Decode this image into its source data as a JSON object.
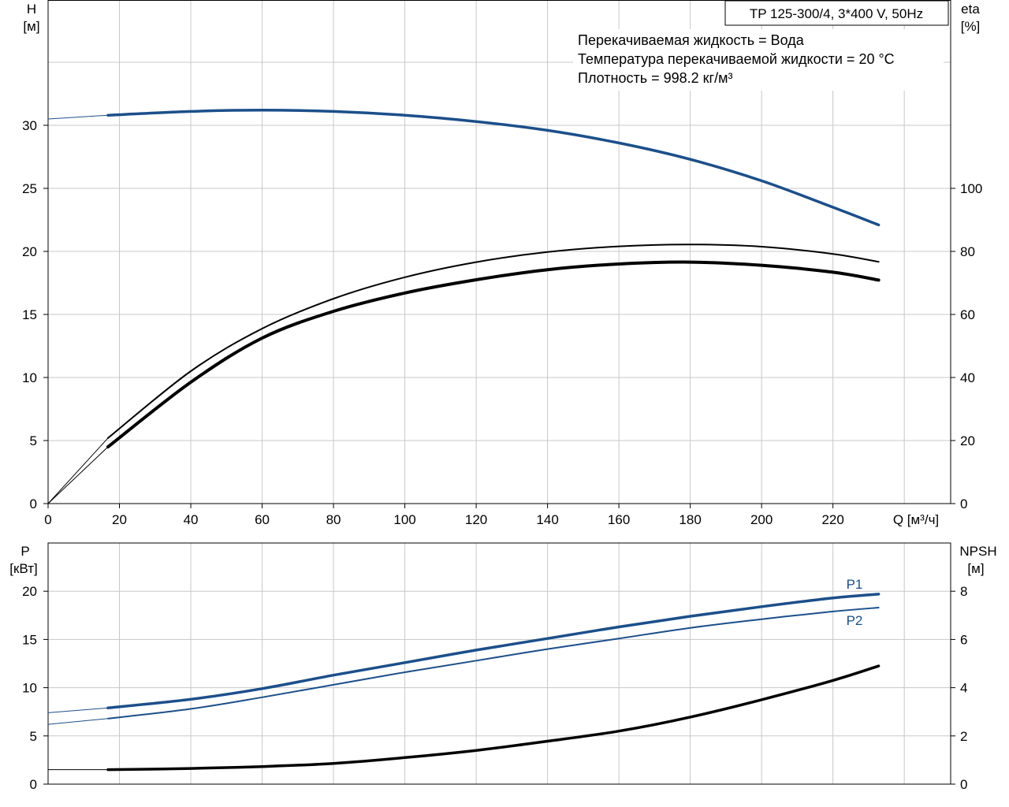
{
  "title": "TP 125-300/4, 3*400 V, 50Hz",
  "info_lines": [
    "Перекачиваемая жидкость = Вода",
    "Температура перекачиваемой жидкости = 20 °C",
    "Плотность = 998.2 кг/м³"
  ],
  "colors": {
    "blue": "#1b4f8a",
    "black": "#000000",
    "grid": "#c8c8c8"
  },
  "chart_data": [
    {
      "type": "line",
      "x_axis": {
        "label": "Q [м³/ч]",
        "ticks": [
          "0",
          "20",
          "40",
          "60",
          "80",
          "100",
          "120",
          "140",
          "160",
          "180",
          "200",
          "220"
        ],
        "range": [
          0,
          253
        ]
      },
      "y_left": {
        "label_line1": "H",
        "label_line2": "[м]",
        "ticks": [
          "0",
          "5",
          "10",
          "15",
          "20",
          "25",
          "30"
        ],
        "range": [
          0,
          40
        ]
      },
      "y_right": {
        "label_line1": "eta",
        "label_line2": "[%]",
        "ticks": [
          "0",
          "20",
          "40",
          "60",
          "80",
          "100"
        ],
        "range": [
          0,
          160
        ]
      },
      "grid": true,
      "series": [
        {
          "key": "H",
          "axis": "left",
          "color": "#1b4f8a",
          "width": 3.5,
          "x": [
            16.8,
            40,
            60,
            80,
            100,
            120,
            140,
            160,
            180,
            200,
            220,
            232.8
          ],
          "y": [
            30.8,
            31.1,
            31.2,
            31.1,
            30.8,
            30.3,
            29.6,
            28.6,
            27.3,
            25.6,
            23.5,
            22.1
          ],
          "ext_x": [
            0,
            16.8
          ],
          "ext_y": [
            30.5,
            30.8
          ]
        },
        {
          "key": "eta_pump",
          "axis": "right",
          "color": "#000000",
          "width": 2,
          "x": [
            16.8,
            40,
            60,
            80,
            100,
            120,
            140,
            160,
            180,
            200,
            220,
            232.8
          ],
          "y": [
            20.8,
            42,
            55.5,
            65,
            71.8,
            76.6,
            79.8,
            81.6,
            82.2,
            81.5,
            79.2,
            76.7
          ],
          "ext_x": [
            0,
            16.8
          ],
          "ext_y": [
            0,
            20.8
          ]
        },
        {
          "key": "eta_total",
          "axis": "right",
          "color": "#000000",
          "width": 4,
          "x": [
            16.8,
            40,
            60,
            80,
            100,
            120,
            140,
            160,
            180,
            200,
            220,
            232.8
          ],
          "y": [
            18,
            38.5,
            52.5,
            61,
            66.8,
            71,
            74.2,
            76,
            76.6,
            75.6,
            73.4,
            70.9
          ],
          "ext_x": [
            0,
            16.8
          ],
          "ext_y": [
            0,
            18
          ]
        }
      ]
    },
    {
      "type": "line",
      "x_axis": {
        "ticks": [],
        "range": [
          0,
          253
        ]
      },
      "y_left": {
        "label_line1": "P",
        "label_line2": "[кВт]",
        "ticks": [
          "0",
          "5",
          "10",
          "15",
          "20"
        ],
        "range": [
          0,
          25
        ]
      },
      "y_right": {
        "label_line1": "NPSH",
        "label_line2": "[м]",
        "ticks": [
          "0",
          "2",
          "4",
          "6",
          "8"
        ],
        "range": [
          0,
          10
        ]
      },
      "grid": true,
      "series": [
        {
          "name": "P1",
          "axis": "left",
          "color": "#1b4f8a",
          "width": 3.5,
          "x": [
            16.8,
            40,
            60,
            80,
            100,
            120,
            140,
            160,
            180,
            200,
            220,
            232.8
          ],
          "y": [
            7.9,
            8.8,
            9.9,
            11.3,
            12.6,
            13.9,
            15.1,
            16.3,
            17.4,
            18.4,
            19.3,
            19.7
          ],
          "ext_x": [
            0,
            16.8
          ],
          "ext_y": [
            7.4,
            7.9
          ]
        },
        {
          "name": "P2",
          "axis": "left",
          "color": "#1b4f8a",
          "width": 2,
          "x": [
            16.8,
            40,
            60,
            80,
            100,
            120,
            140,
            160,
            180,
            200,
            220,
            232.8
          ],
          "y": [
            6.8,
            7.8,
            9.0,
            10.3,
            11.6,
            12.8,
            14.0,
            15.1,
            16.2,
            17.1,
            17.9,
            18.3
          ],
          "ext_x": [
            0,
            16.8
          ],
          "ext_y": [
            6.2,
            6.8
          ]
        },
        {
          "key": "NPSH",
          "axis": "right",
          "color": "#000000",
          "width": 3.5,
          "x": [
            16.8,
            40,
            60,
            80,
            100,
            120,
            140,
            160,
            180,
            200,
            220,
            232.8
          ],
          "y": [
            0.6,
            0.65,
            0.73,
            0.86,
            1.1,
            1.4,
            1.78,
            2.2,
            2.78,
            3.5,
            4.3,
            4.9
          ],
          "ext_x": [
            0,
            16.8
          ],
          "ext_y": [
            0.6,
            0.6
          ]
        }
      ]
    }
  ]
}
